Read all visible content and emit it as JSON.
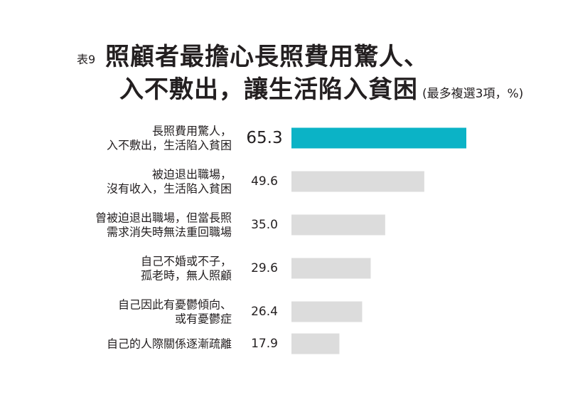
{
  "title": {
    "tag": "表9",
    "line1": "照顧者最擔心長照費用驚人、",
    "line2": "入不敷出，讓生活陷入貧困",
    "note": "(最多複選3項，%)"
  },
  "colors": {
    "highlight": "#0bb3c6",
    "bar": "#dcdcdc",
    "text": "#231f20"
  },
  "chart_data": {
    "type": "bar",
    "orientation": "horizontal",
    "categories": [
      [
        "長照費用驚人，",
        "入不敷出，生活陷入貧困"
      ],
      [
        "被迫退出職場，",
        "沒有收入，生活陷入貧困"
      ],
      [
        "曾被迫退出職場，但當長照",
        "需求消失時無法重回職場"
      ],
      [
        "自己不婚或不子，",
        "孤老時，無人照顧"
      ],
      [
        "自己因此有憂鬱傾向、",
        "或有憂鬱症"
      ],
      [
        "自己的人際關係逐漸疏離"
      ]
    ],
    "values": [
      65.3,
      49.6,
      35.0,
      29.6,
      26.4,
      17.9
    ],
    "value_labels": [
      "65.3",
      "49.6",
      "35.0",
      "29.6",
      "26.4",
      "17.9"
    ],
    "highlight_index": 0,
    "xlim": [
      0,
      100
    ],
    "grid": false,
    "legend": "none"
  }
}
